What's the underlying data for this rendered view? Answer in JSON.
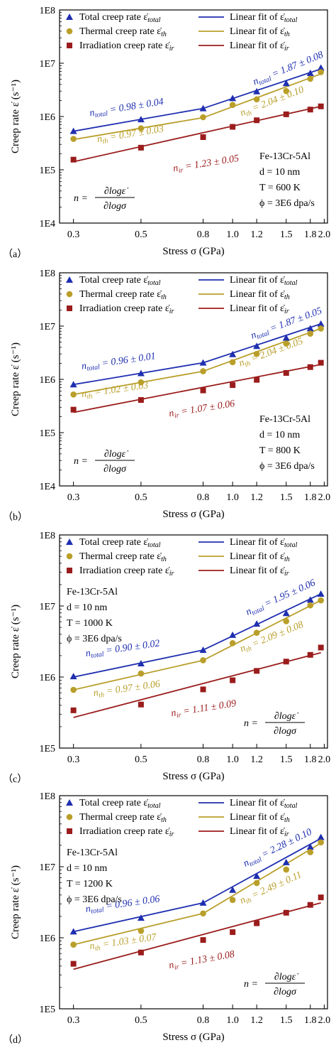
{
  "colors": {
    "total": "#1f2fb0",
    "thermal": "#b99f2a",
    "irradiation": "#9b1c1c",
    "axis": "#000000",
    "background": "#ffffff"
  },
  "chart_data": [
    {
      "panel_label": "（a）",
      "type": "line",
      "xscale": "log",
      "yscale": "log",
      "xlabel": "Stress σ (GPa)",
      "ylabel": "Creep rate ε̇ (s⁻¹)",
      "xlim": [
        0.27,
        2.05
      ],
      "ylim": [
        "1E4",
        "1E8"
      ],
      "xticks": [
        "0.3",
        "0.5",
        "0.8",
        "1.0",
        "1.2",
        "1.5",
        "1.8",
        "2.0"
      ],
      "yticks": [
        "1E4",
        "1E5",
        "1E6",
        "1E7",
        "1E8"
      ],
      "legend_position": "top",
      "legend": [
        {
          "marker": "triangle",
          "label": "Total creep rate ε̇total",
          "fit": "Linear fit of ε̇total",
          "series": "total"
        },
        {
          "marker": "circle",
          "label": "Thermal creep rate ε̇th",
          "fit": "Linear fit of ε̇th",
          "series": "thermal"
        },
        {
          "marker": "square",
          "label": "Irradiation creep rate ε̇ir",
          "fit": "Linear fit of ε̇ir",
          "series": "irradiation"
        }
      ],
      "info": [
        "Fe-13Cr-5Al",
        "d   =  10 nm",
        "T   =  600 K",
        "ϕ = 3E6 dpa/s"
      ],
      "info_position": "bottom-right",
      "formula": {
        "lhs": "n =",
        "num": "∂logε̇",
        "den": "∂logσ"
      },
      "formula_position": "bottom-left",
      "x": [
        0.3,
        0.5,
        0.8,
        1.0,
        1.2,
        1.5,
        1.8,
        1.95
      ],
      "series": [
        {
          "name": "total",
          "values": [
            530000.0,
            880000.0,
            1420000.0,
            2200000.0,
            2950000.0,
            4200000.0,
            6500000.0,
            8200000.0
          ]
        },
        {
          "name": "thermal",
          "values": [
            380000.0,
            600000.0,
            970000.0,
            1650000.0,
            2100000.0,
            3000000.0,
            5100000.0,
            6800000.0
          ]
        },
        {
          "name": "irradiation",
          "values": [
            155000.0,
            260000.0,
            410000.0,
            640000.0,
            850000.0,
            1100000.0,
            1350000.0,
            1550000.0
          ]
        }
      ],
      "fits": [
        {
          "series": "total",
          "segments": [
            [
              0.3,
              530000.0,
              0.8,
              1420000.0
            ],
            [
              0.8,
              1420000.0,
              1.95,
              7800000.0
            ]
          ]
        },
        {
          "series": "thermal",
          "segments": [
            [
              0.3,
              370000.0,
              0.8,
              950000.0
            ],
            [
              0.8,
              950000.0,
              1.95,
              6300000.0
            ]
          ]
        },
        {
          "series": "irradiation",
          "segments": [
            [
              0.3,
              142000.0,
              1.95,
              1550000.0
            ]
          ]
        }
      ],
      "annotations": [
        {
          "series": "total",
          "text": "n_total = 0.98 ± 0.04",
          "x": 0.34,
          "y": 1020000.0,
          "angle": -9
        },
        {
          "series": "total",
          "text": "n_total = 1.87 ± 0.08",
          "x": 1.18,
          "y": 3900000.0,
          "angle": -22
        },
        {
          "series": "thermal",
          "text": "n_th = 0.97 ± 0.03",
          "x": 0.36,
          "y": 330000.0,
          "angle": -9
        },
        {
          "series": "thermal",
          "text": "n_th = 2.04 ± 0.10",
          "x": 1.07,
          "y": 1020000.0,
          "angle": -21
        },
        {
          "series": "irradiation",
          "text": "n_ir = 1.23 ± 0.05",
          "x": 0.64,
          "y": 93000.0,
          "angle": -9
        }
      ]
    },
    {
      "panel_label": "（b）",
      "type": "line",
      "xscale": "log",
      "yscale": "log",
      "xlabel": "Stress σ (GPa)",
      "ylabel": "Creep rate ε̇ (s⁻¹)",
      "xlim": [
        0.27,
        2.05
      ],
      "ylim": [
        "1E4",
        "1E8"
      ],
      "xticks": [
        "0.3",
        "0.5",
        "0.8",
        "1.0",
        "1.2",
        "1.5",
        "1.8",
        "2.0"
      ],
      "yticks": [
        "1E4",
        "1E5",
        "1E6",
        "1E7",
        "1E8"
      ],
      "legend_position": "top",
      "legend": [
        {
          "marker": "triangle",
          "label": "Total creep rate ε̇total",
          "fit": "Linear fit of ε̇total",
          "series": "total"
        },
        {
          "marker": "circle",
          "label": "Thermal creep rate ε̇th",
          "fit": "Linear fit of ε̇th",
          "series": "thermal"
        },
        {
          "marker": "square",
          "label": "Irradiation creep rate ε̇ir",
          "fit": "Linear fit of ε̇ir",
          "series": "irradiation"
        }
      ],
      "info": [
        "Fe-13Cr-5Al",
        "d   =  10 nm",
        "T   =  800 K",
        "ϕ = 3E6 dpa/s"
      ],
      "info_position": "bottom-right",
      "formula": {
        "lhs": "n =",
        "num": "∂logε̇",
        "den": "∂logσ"
      },
      "formula_position": "bottom-left",
      "x": [
        0.3,
        0.5,
        0.8,
        1.0,
        1.2,
        1.5,
        1.8,
        1.95
      ],
      "series": [
        {
          "name": "total",
          "values": [
            800000.0,
            1300000.0,
            2050000.0,
            2950000.0,
            4200000.0,
            6000000.0,
            9000000.0,
            11000000.0
          ]
        },
        {
          "name": "thermal",
          "values": [
            520000.0,
            880000.0,
            1420000.0,
            2100000.0,
            3000000.0,
            4700000.0,
            7200000.0,
            9000000.0
          ]
        },
        {
          "name": "irradiation",
          "values": [
            270000.0,
            410000.0,
            620000.0,
            780000.0,
            980000.0,
            1320000.0,
            1700000.0,
            2050000.0
          ]
        }
      ],
      "fits": [
        {
          "series": "total",
          "segments": [
            [
              0.3,
              800000.0,
              0.8,
              2050000.0
            ],
            [
              0.8,
              2050000.0,
              1.95,
              11000000.0
            ]
          ]
        },
        {
          "series": "thermal",
          "segments": [
            [
              0.3,
              520000.0,
              0.8,
              1420000.0
            ],
            [
              0.8,
              1420000.0,
              1.95,
              9000000.0
            ]
          ]
        },
        {
          "series": "irradiation",
          "segments": [
            [
              0.3,
              240000.0,
              1.95,
              1900000.0
            ]
          ]
        }
      ],
      "annotations": [
        {
          "series": "total",
          "text": "n_total = 0.96 ± 0.01",
          "x": 0.32,
          "y": 1550000.0,
          "angle": -8
        },
        {
          "series": "total",
          "text": "n_total = 1.87 ± 0.05",
          "x": 1.16,
          "y": 5800000.0,
          "angle": -20
        },
        {
          "series": "thermal",
          "text": "n_th = 1.02 ± 0.03",
          "x": 0.32,
          "y": 460000.0,
          "angle": -8
        },
        {
          "series": "thermal",
          "text": "n_th = 2.04 ± 0.05",
          "x": 1.06,
          "y": 1750000.0,
          "angle": -20
        },
        {
          "series": "irradiation",
          "text": "n_ir = 1.07 ± 0.06",
          "x": 0.62,
          "y": 200000.0,
          "angle": -9
        }
      ]
    },
    {
      "panel_label": "（c）",
      "type": "line",
      "xscale": "log",
      "yscale": "log",
      "xlabel": "Stress σ (GPa)",
      "ylabel": "Creep rate ε̇ (s⁻¹)",
      "xlim": [
        0.27,
        2.05
      ],
      "ylim": [
        "1E5",
        "1E8"
      ],
      "xticks": [
        "0.3",
        "0.5",
        "0.8",
        "1.0",
        "1.2",
        "1.5",
        "1.8",
        "2.0"
      ],
      "yticks": [
        "1E5",
        "1E6",
        "1E7",
        "1E8"
      ],
      "legend_position": "top",
      "legend": [
        {
          "marker": "triangle",
          "label": "Total creep rate ε̇total",
          "fit": "Linear fit of ε̇total",
          "series": "total"
        },
        {
          "marker": "circle",
          "label": "Thermal creep rate ε̇th",
          "fit": "Linear fit of ε̇th",
          "series": "thermal"
        },
        {
          "marker": "square",
          "label": "Irradiation creep rate ε̇ir",
          "fit": "Linear fit of ε̇ir",
          "series": "irradiation"
        }
      ],
      "info": [
        "Fe-13Cr-5Al",
        "d   =  10 nm",
        "T   =  1000 K",
        "ϕ = 3E6 dpa/s"
      ],
      "info_position": "top-left",
      "formula": {
        "lhs": "n =",
        "num": "∂logε̇",
        "den": "∂logσ"
      },
      "formula_position": "bottom-right",
      "x": [
        0.3,
        0.5,
        0.8,
        1.0,
        1.2,
        1.5,
        1.8,
        1.95
      ],
      "series": [
        {
          "name": "total",
          "values": [
            1020000.0,
            1550000.0,
            2400000.0,
            3900000.0,
            5600000.0,
            7900000.0,
            12200000.0,
            14800000.0
          ]
        },
        {
          "name": "thermal",
          "values": [
            660000.0,
            1120000.0,
            1720000.0,
            3000000.0,
            4200000.0,
            6100000.0,
            10200000.0,
            12000000.0
          ]
        },
        {
          "name": "irradiation",
          "values": [
            340000.0,
            410000.0,
            670000.0,
            900000.0,
            1220000.0,
            1650000.0,
            2050000.0,
            2600000.0
          ]
        }
      ],
      "fits": [
        {
          "series": "total",
          "segments": [
            [
              0.3,
              1000000.0,
              0.8,
              2400000.0
            ],
            [
              0.8,
              2400000.0,
              1.95,
              14800000.0
            ]
          ]
        },
        {
          "series": "thermal",
          "segments": [
            [
              0.3,
              660000.0,
              0.8,
              1720000.0
            ],
            [
              0.8,
              1720000.0,
              1.95,
              12000000.0
            ]
          ]
        },
        {
          "series": "irradiation",
          "segments": [
            [
              0.3,
              270000.0,
              1.95,
              2200000.0
            ]
          ]
        }
      ],
      "annotations": [
        {
          "series": "total",
          "text": "n_total = 0.90 ± 0.02",
          "x": 0.33,
          "y": 1950000.0,
          "angle": -8
        },
        {
          "series": "total",
          "text": "n_total = 1.95 ± 0.06",
          "x": 1.12,
          "y": 7400000.0,
          "angle": -24
        },
        {
          "series": "thermal",
          "text": "n_th = 0.97 ± 0.06",
          "x": 0.35,
          "y": 540000.0,
          "angle": -8
        },
        {
          "series": "thermal",
          "text": "n_th = 2.09 ± 0.08",
          "x": 1.07,
          "y": 2250000.0,
          "angle": -22
        },
        {
          "series": "irradiation",
          "text": "n_ir = 1.11 ± 0.09",
          "x": 0.63,
          "y": 280000.0,
          "angle": -9
        }
      ]
    },
    {
      "panel_label": "（d）",
      "type": "line",
      "xscale": "log",
      "yscale": "log",
      "xlabel": "Stress σ (GPa)",
      "ylabel": "Creep rate ε̇ (s⁻¹)",
      "xlim": [
        0.27,
        2.05
      ],
      "ylim": [
        "1E5",
        "1E8"
      ],
      "xticks": [
        "0.3",
        "0.5",
        "0.8",
        "1.0",
        "1.2",
        "1.5",
        "1.8",
        "2.0"
      ],
      "yticks": [
        "1E5",
        "1E6",
        "1E7",
        "1E8"
      ],
      "legend_position": "top",
      "legend": [
        {
          "marker": "triangle",
          "label": "Total creep rate ε̇total",
          "fit": "Linear fit of ε̇total",
          "series": "total"
        },
        {
          "marker": "circle",
          "label": "Thermal creep rate ε̇th",
          "fit": "Linear fit of ε̇th",
          "series": "thermal"
        },
        {
          "marker": "square",
          "label": "Irradiation creep rate ε̇ir",
          "fit": "Linear fit of ε̇ir",
          "series": "irradiation"
        }
      ],
      "info": [
        "Fe-13Cr-5Al",
        "d   =  10 nm",
        "T   =  1200 K",
        "ϕ = 3E6 dpa/s"
      ],
      "info_position": "top-left",
      "formula": {
        "lhs": "n =",
        "num": "∂logε̇",
        "den": "∂logσ"
      },
      "formula_position": "bottom-right",
      "x": [
        0.3,
        0.5,
        0.8,
        1.0,
        1.2,
        1.5,
        1.8,
        1.95
      ],
      "series": [
        {
          "name": "total",
          "values": [
            1220000.0,
            1900000.0,
            3100000.0,
            4700000.0,
            7400000.0,
            11500000.0,
            19000000.0,
            26000000.0
          ]
        },
        {
          "name": "thermal",
          "values": [
            800000.0,
            1250000.0,
            2200000.0,
            3400000.0,
            5900000.0,
            9100000.0,
            16000000.0,
            22000000.0
          ]
        },
        {
          "name": "irradiation",
          "values": [
            430000.0,
            620000.0,
            930000.0,
            1200000.0,
            1600000.0,
            2250000.0,
            2900000.0,
            3700000.0
          ]
        }
      ],
      "fits": [
        {
          "series": "total",
          "segments": [
            [
              0.3,
              1220000.0,
              0.8,
              3100000.0
            ],
            [
              0.8,
              3100000.0,
              1.95,
              25000000.0
            ]
          ]
        },
        {
          "series": "thermal",
          "segments": [
            [
              0.3,
              800000.0,
              0.8,
              2200000.0
            ],
            [
              0.8,
              2200000.0,
              1.95,
              21500000.0
            ]
          ]
        },
        {
          "series": "irradiation",
          "segments": [
            [
              0.3,
              360000.0,
              1.95,
              3100000.0
            ]
          ]
        }
      ],
      "annotations": [
        {
          "series": "total",
          "text": "n_total = 0.96 ± 0.06",
          "x": 0.33,
          "y": 2300000.0,
          "angle": -8
        },
        {
          "series": "total",
          "text": "n_total = 2.28 ± 0.10",
          "x": 1.1,
          "y": 10000000.0,
          "angle": -26
        },
        {
          "series": "thermal",
          "text": "n_th = 1.03 ± 0.07",
          "x": 0.34,
          "y": 690000.0,
          "angle": -8
        },
        {
          "series": "thermal",
          "text": "n_th = 2.49 ± 0.11",
          "x": 1.07,
          "y": 3000000.0,
          "angle": -24
        },
        {
          "series": "irradiation",
          "text": "n_ir = 1.13 ± 0.08",
          "x": 0.62,
          "y": 370000.0,
          "angle": -10
        }
      ]
    }
  ]
}
